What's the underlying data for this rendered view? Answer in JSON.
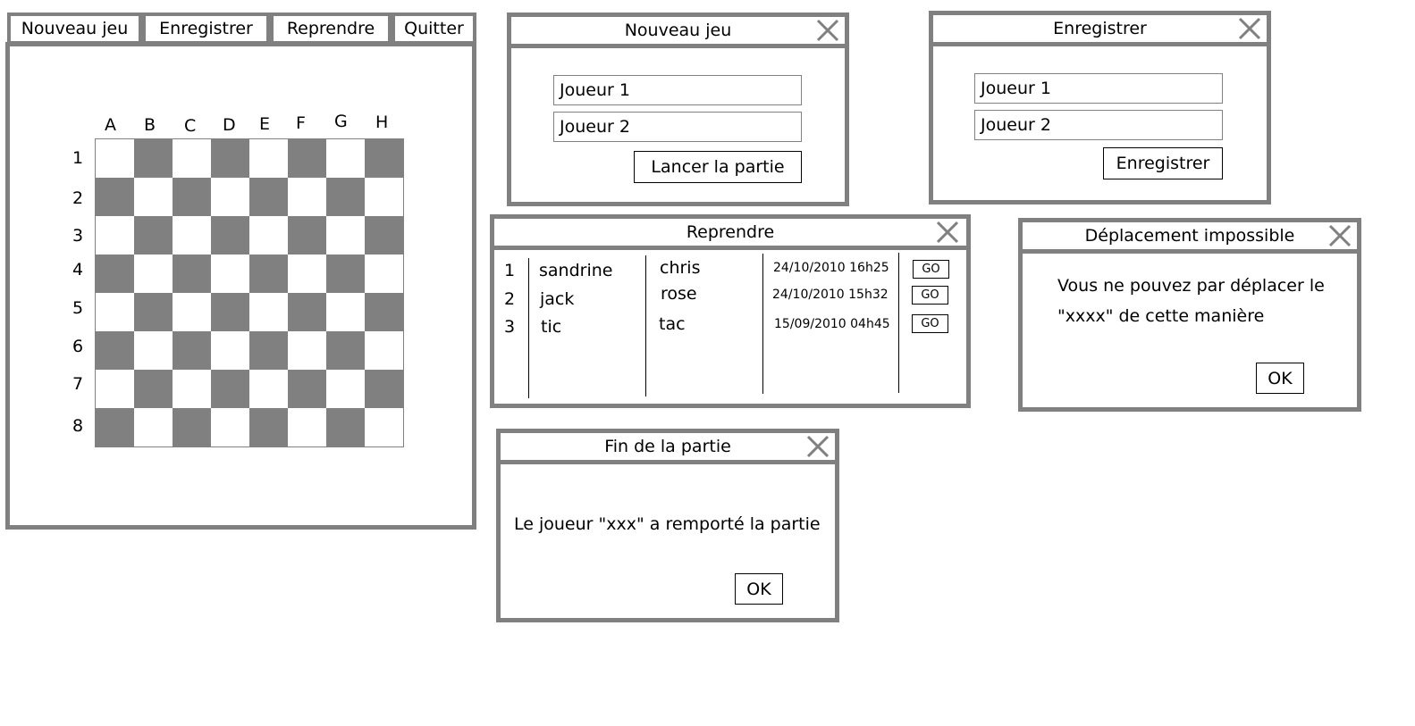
{
  "menu": {
    "new_game": "Nouveau jeu",
    "save": "Enregistrer",
    "resume": "Reprendre",
    "quit": "Quitter"
  },
  "board": {
    "columns": [
      "A",
      "B",
      "C",
      "D",
      "E",
      "F",
      "G",
      "H"
    ],
    "rows": [
      "1",
      "2",
      "3",
      "4",
      "5",
      "6",
      "7",
      "8"
    ],
    "dark_color": "#808080",
    "light_color": "#ffffff"
  },
  "new_game_dialog": {
    "title": "Nouveau jeu",
    "player1_value": "Joueur 1",
    "player2_value": "Joueur 2",
    "start_label": "Lancer la partie"
  },
  "save_dialog": {
    "title": "Enregistrer",
    "player1_value": "Joueur 1",
    "player2_value": "Joueur 2",
    "save_label": "Enregistrer"
  },
  "resume_dialog": {
    "title": "Reprendre",
    "games": [
      {
        "num": "1",
        "player1": "sandrine",
        "player2": "chris",
        "date": "24/10/2010 16h25",
        "go": "GO"
      },
      {
        "num": "2",
        "player1": "jack",
        "player2": "rose",
        "date": "24/10/2010 15h32",
        "go": "GO"
      },
      {
        "num": "3",
        "player1": "tic",
        "player2": "tac",
        "date": "15/09/2010 04h45",
        "go": "GO"
      }
    ]
  },
  "move_error_dialog": {
    "title": "Déplacement impossible",
    "line1": "Vous ne pouvez par déplacer le",
    "line2": "\"xxxx\"  de cette manière",
    "ok_label": "OK"
  },
  "end_game_dialog": {
    "title": "Fin de la partie",
    "message": "Le joueur \"xxx\" a remporté la partie",
    "ok_label": "OK"
  }
}
